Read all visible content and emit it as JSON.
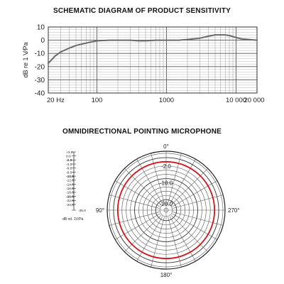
{
  "chart_data": [
    {
      "type": "line",
      "title": "SCHEMATIC DIAGRAM OF PRODUCT SENSITIVITY",
      "ylabel": "dB re 1 V⁄Pa",
      "xscale": "log",
      "xlim": [
        20,
        20000
      ],
      "ylim": [
        -40,
        10
      ],
      "grid": true,
      "y_ticks": [
        10,
        0,
        -10,
        -20,
        -30,
        -40
      ],
      "y_tick_labels": [
        "10",
        "0",
        "-10",
        "-20",
        "-30",
        "-40"
      ],
      "x_ticks": [
        20,
        100,
        1000,
        10000,
        20000
      ],
      "x_tick_labels": [
        "20 Hz",
        "100",
        "1000",
        "10 000",
        "20 000"
      ],
      "series": [
        {
          "x": [
            20,
            25,
            30,
            40,
            50,
            60,
            80,
            100,
            150,
            200,
            300,
            400,
            500,
            700,
            1000,
            1500,
            2000,
            3000,
            4000,
            5000,
            6000,
            7000,
            8000,
            10000,
            12000,
            15000,
            20000
          ],
          "values": [
            -17.5,
            -12,
            -9,
            -6,
            -4,
            -3,
            -1.5,
            -0.5,
            0,
            0,
            0,
            -0.5,
            -0.5,
            0,
            0,
            0,
            0.5,
            1.5,
            3,
            4,
            4,
            4,
            3.5,
            2,
            1,
            0.5,
            0
          ]
        }
      ]
    },
    {
      "type": "polar",
      "title": "OMNIDIRECTIONAL POINTING MICROPHONE",
      "angle_labels": [
        "0°",
        "90°",
        "180°",
        "270°"
      ],
      "ring_labels": [
        "-2.0",
        "-10.0",
        "-20.0"
      ],
      "scale_labels": [
        "+3.0",
        "0.0",
        "-2.0",
        "-4.0",
        "-6.0",
        "-8.0",
        "-10.0",
        "-12.0",
        "-14.0",
        "-16.0",
        "-18.0",
        "-20.0",
        "-22.0",
        "-24.0",
        "-25.0"
      ],
      "scale_unit": "dB rel. 1V/Pa",
      "series": [
        {
          "angles_deg": [
            0,
            90,
            180,
            270
          ],
          "values": [
            -2.0,
            -2.0,
            -2.0,
            -2.0
          ],
          "color": "#d0141c"
        }
      ],
      "rlim": [
        -25,
        3
      ]
    }
  ]
}
